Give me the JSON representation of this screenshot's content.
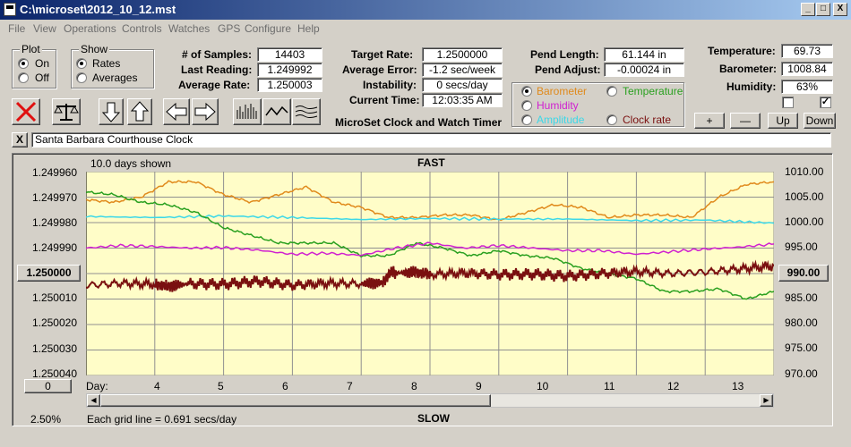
{
  "window": {
    "title": "C:\\microset\\2012_10_12.mst",
    "minimize": "_",
    "maximize": "□",
    "close": "X"
  },
  "menu": [
    "File",
    "View",
    "Operations",
    "Controls",
    "Watches",
    "GPS",
    "Configure",
    "Help"
  ],
  "plot": {
    "title": "Plot",
    "on": "On",
    "off": "Off",
    "selected": "On"
  },
  "show": {
    "title": "Show",
    "rates": "Rates",
    "averages": "Averages",
    "selected": "Rates"
  },
  "stats": {
    "samples_label": "# of Samples:",
    "samples": "14403",
    "last_label": "Last Reading:",
    "last": "1.249992",
    "avg_label": "Average Rate:",
    "avg": "1.250003",
    "target_label": "Target Rate:",
    "target": "1.2500000",
    "avgerr_label": "Average Error:",
    "avgerr": "-1.2 sec/week",
    "instab_label": "Instability:",
    "instab": "0 secs/day",
    "time_label": "Current Time:",
    "time": "12:03:35 AM",
    "pendlen_label": "Pend Length:",
    "pendlen": "61.144 in",
    "pendadj_label": "Pend Adjust:",
    "pendadj": "-0.00024 in",
    "temp_label": "Temperature:",
    "temp": "69.73",
    "baro_label": "Barometer:",
    "baro": "1008.84",
    "hum_label": "Humidity:",
    "hum": "63%"
  },
  "app_caption": "MicroSet Clock and Watch Timer",
  "aux_selector": {
    "barometer": "Barometer",
    "temperature": "Temperature",
    "humidity": "Humidity",
    "amplitude": "Amplitude",
    "clockrate": "Clock rate",
    "selected": "Barometer"
  },
  "aux_buttons": {
    "plus": "+",
    "minus": "—",
    "up": "Up",
    "down": "Down"
  },
  "notes_close": "X",
  "notes": "Santa Barbara Courthouse Clock",
  "graph": {
    "days_shown": "10.0 days shown",
    "fast": "FAST",
    "slow": "SLOW",
    "day_label": "Day:",
    "gridline_note": "Each grid line = 0.691 secs/day",
    "percent": "2.50%",
    "center_value": "1.250000",
    "right_center_value": "990.00",
    "offset_value": "0",
    "bg": "#fffdc8",
    "line_color": "#7a1010"
  },
  "chart_data": {
    "type": "line",
    "x_range": [
      3,
      13
    ],
    "x_ticks": [
      4,
      5,
      6,
      7,
      8,
      9,
      10,
      11,
      12,
      13
    ],
    "left_ticks": [
      "1.249960",
      "1.249970",
      "1.249980",
      "1.249990",
      "1.250000",
      "1.250010",
      "1.250020",
      "1.250030",
      "1.250040"
    ],
    "right_ticks": [
      "1010.00",
      "1005.00",
      "1000.00",
      "995.00",
      "990.00",
      "985.00",
      "980.00",
      "975.00",
      "970.00"
    ],
    "series": [
      {
        "color": "#e08a1c",
        "x": [
          3.0,
          3.4,
          3.8,
          4.2,
          4.6,
          5.0,
          5.4,
          5.8,
          6.2,
          6.6,
          7.0,
          7.4,
          7.8,
          8.2,
          8.6,
          9.0,
          9.4,
          9.8,
          10.2,
          10.6,
          11.0,
          11.4,
          11.8,
          12.2,
          12.6,
          13.0
        ],
        "y": [
          1004.5,
          1004.0,
          1005.0,
          1008.0,
          1008.0,
          1005.5,
          1004.0,
          1005.5,
          1007.0,
          1004.0,
          1003.0,
          1001.0,
          1001.0,
          1001.5,
          1001.5,
          1000.5,
          1002.0,
          1003.5,
          1003.0,
          1001.0,
          1001.5,
          1001.5,
          1001.0,
          1005.0,
          1007.5,
          1008.0
        ]
      },
      {
        "color": "#3cd8e8",
        "x": [
          3.0,
          4.0,
          5.0,
          6.0,
          7.0,
          8.0,
          9.0,
          10.0,
          11.0,
          12.0,
          13.0
        ],
        "y": [
          1001.2,
          1001.0,
          1001.3,
          1001.0,
          1000.6,
          1000.8,
          1000.7,
          1000.7,
          1000.4,
          1000.5,
          999.9
        ]
      },
      {
        "color": "#2aa020",
        "x": [
          3.0,
          3.4,
          3.8,
          4.2,
          4.6,
          5.0,
          5.4,
          5.8,
          6.2,
          6.6,
          7.0,
          7.4,
          7.8,
          8.2,
          8.6,
          9.0,
          9.4,
          9.8,
          10.2,
          10.6,
          11.0,
          11.4,
          11.8,
          12.2,
          12.6,
          13.0
        ],
        "y": [
          1006.0,
          1005.5,
          1004.0,
          1003.5,
          1002.0,
          999.0,
          997.5,
          996.0,
          996.0,
          996.0,
          993.5,
          993.5,
          996.0,
          995.0,
          993.5,
          994.5,
          993.5,
          993.0,
          991.0,
          990.0,
          989.0,
          986.5,
          986.5,
          987.0,
          985.0,
          986.5
        ]
      },
      {
        "color": "#d020d0",
        "x": [
          3.0,
          3.5,
          4.0,
          4.5,
          5.0,
          5.5,
          6.0,
          6.5,
          7.0,
          7.5,
          8.0,
          8.5,
          9.0,
          9.5,
          10.0,
          10.5,
          11.0,
          11.5,
          12.0,
          12.5,
          13.0
        ],
        "y": [
          995.0,
          995.5,
          995.3,
          995.0,
          995.1,
          994.6,
          993.8,
          994.0,
          993.6,
          995.0,
          996.0,
          995.0,
          995.5,
          995.0,
          994.5,
          994.5,
          993.8,
          994.3,
          994.8,
          995.2,
          995.8
        ]
      },
      {
        "color": "#7a1010",
        "x": [
          3.0,
          3.5,
          4.0,
          4.2,
          4.5,
          5.0,
          5.5,
          6.0,
          6.5,
          7.0,
          7.3,
          7.45,
          7.5,
          7.8,
          8.0,
          8.5,
          9.0,
          9.5,
          10.0,
          10.5,
          11.0,
          11.5,
          12.0,
          12.5,
          13.0
        ],
        "y": [
          1.2500046,
          1.2500038,
          1.2500042,
          1.250005,
          1.250004,
          1.2500042,
          1.250003,
          1.2500046,
          1.2500038,
          1.250004,
          1.2500036,
          1.249999,
          1.2499998,
          1.2499994,
          1.2500004,
          1.2499998,
          1.2500004,
          1.2500002,
          1.250001,
          1.25,
          1.2499992,
          1.25,
          1.2499994,
          1.2499982,
          1.249997
        ]
      }
    ]
  }
}
